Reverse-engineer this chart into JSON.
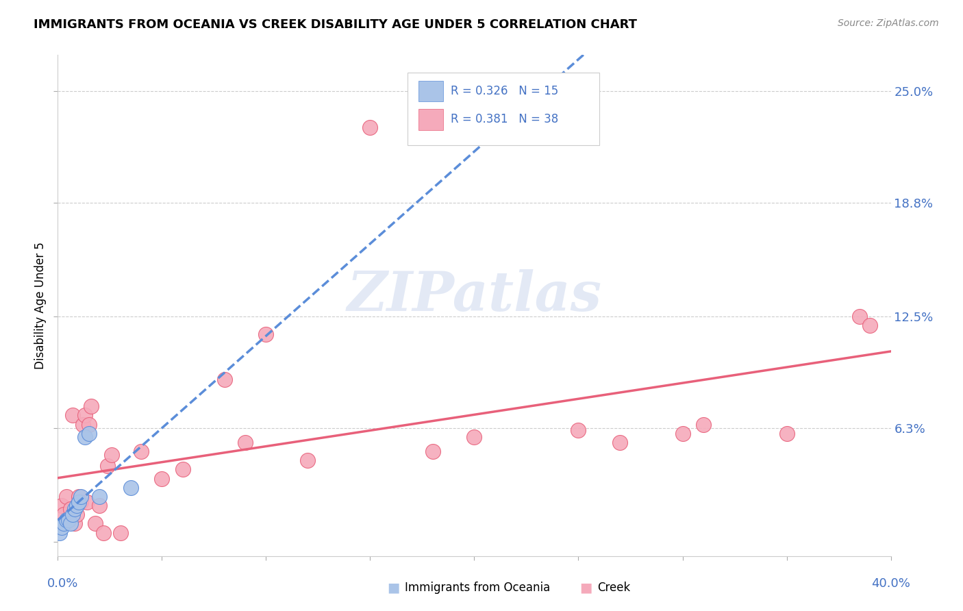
{
  "title": "IMMIGRANTS FROM OCEANIA VS CREEK DISABILITY AGE UNDER 5 CORRELATION CHART",
  "source": "Source: ZipAtlas.com",
  "ylabel": "Disability Age Under 5",
  "xlim": [
    0.0,
    0.4
  ],
  "ylim": [
    -0.008,
    0.27
  ],
  "color_oceania": "#aac4e8",
  "color_creek": "#f5aabb",
  "trendline_oceania": "#5b8dd9",
  "trendline_creek": "#e8607a",
  "legend_r1": "R = 0.326",
  "legend_n1": "N = 15",
  "legend_r2": "R = 0.381",
  "legend_n2": "N = 38",
  "watermark": "ZIPatlas",
  "oceania_x": [
    0.001,
    0.002,
    0.003,
    0.004,
    0.005,
    0.006,
    0.007,
    0.008,
    0.009,
    0.01,
    0.011,
    0.013,
    0.015,
    0.02,
    0.035
  ],
  "oceania_y": [
    0.005,
    0.008,
    0.01,
    0.012,
    0.012,
    0.01,
    0.015,
    0.018,
    0.02,
    0.022,
    0.025,
    0.058,
    0.06,
    0.025,
    0.03
  ],
  "creek_x": [
    0.002,
    0.003,
    0.004,
    0.005,
    0.006,
    0.007,
    0.008,
    0.009,
    0.01,
    0.011,
    0.012,
    0.013,
    0.014,
    0.015,
    0.016,
    0.018,
    0.02,
    0.022,
    0.024,
    0.026,
    0.03,
    0.04,
    0.05,
    0.06,
    0.08,
    0.09,
    0.1,
    0.12,
    0.15,
    0.18,
    0.2,
    0.25,
    0.27,
    0.3,
    0.31,
    0.35,
    0.385,
    0.39
  ],
  "creek_y": [
    0.02,
    0.015,
    0.025,
    0.012,
    0.018,
    0.07,
    0.01,
    0.015,
    0.025,
    0.022,
    0.065,
    0.07,
    0.022,
    0.065,
    0.075,
    0.01,
    0.02,
    0.005,
    0.042,
    0.048,
    0.005,
    0.05,
    0.035,
    0.04,
    0.09,
    0.055,
    0.115,
    0.045,
    0.23,
    0.05,
    0.058,
    0.062,
    0.055,
    0.06,
    0.065,
    0.06,
    0.125,
    0.12
  ]
}
